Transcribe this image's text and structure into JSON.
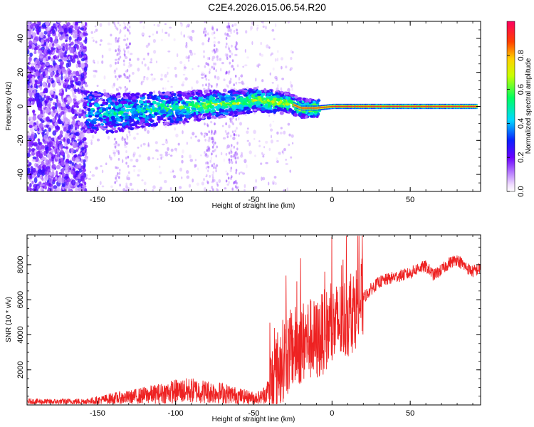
{
  "title": "C2E4.2026.015.06.54.R20",
  "chart_data": [
    {
      "type": "heatmap",
      "title": "C2E4.2026.015.06.54.R20",
      "xlabel": "Height of straight line (km)",
      "ylabel": "Frequency (Hz)",
      "xlim": [
        -195,
        95
      ],
      "ylim": [
        -50,
        50
      ],
      "xticks": [
        -150,
        -100,
        -50,
        0,
        50
      ],
      "xtick_labels": [
        "-150",
        "-100",
        "-50",
        "0",
        "50"
      ],
      "yticks": [
        -40,
        -20,
        0,
        20,
        40
      ],
      "ytick_labels": [
        "-40",
        "-20",
        "0",
        "20",
        "40"
      ],
      "colorbar": {
        "label": "Normalized spectral amplitude",
        "range": [
          0,
          1
        ],
        "ticks": [
          0.0,
          0.2,
          0.4,
          0.6,
          0.8
        ],
        "tick_labels": [
          "0.0",
          "0.2",
          "0.4",
          "0.6",
          "0.8"
        ]
      },
      "peak_frequency_trace": {
        "x": [
          -160,
          -140,
          -120,
          -100,
          -80,
          -60,
          -50,
          -40,
          -30,
          -25,
          -20,
          -10,
          0,
          10,
          20,
          50,
          92
        ],
        "y": [
          -3,
          -4,
          -2,
          -1,
          1,
          2,
          4,
          3,
          2,
          1,
          -1,
          -1,
          0,
          0,
          0,
          0,
          0
        ]
      }
    },
    {
      "type": "line",
      "xlabel": "Height of straight line (km)",
      "ylabel": "SNR (10 * v/v)",
      "xlim": [
        -195,
        95
      ],
      "ylim": [
        0,
        9700
      ],
      "xticks": [
        -150,
        -100,
        -50,
        0,
        50
      ],
      "xtick_labels": [
        "-150",
        "-100",
        "-50",
        "0",
        "50"
      ],
      "yticks": [
        2000,
        4000,
        6000,
        8000
      ],
      "ytick_labels": [
        "2000",
        "4000",
        "6000",
        "8000"
      ],
      "color": "#ee2222",
      "series": [
        {
          "name": "SNR",
          "x": [
            -195,
            -180,
            -160,
            -150,
            -140,
            -130,
            -120,
            -110,
            -100,
            -90,
            -80,
            -70,
            -60,
            -50,
            -45,
            -40,
            -35,
            -30,
            -25,
            -20,
            -15,
            -10,
            -5,
            0,
            5,
            10,
            15,
            20,
            25,
            30,
            40,
            50,
            55,
            60,
            65,
            70,
            75,
            80,
            85,
            90,
            95
          ],
          "y": [
            200,
            180,
            200,
            250,
            380,
            430,
            550,
            650,
            780,
            820,
            750,
            680,
            520,
            400,
            450,
            900,
            1900,
            2800,
            3200,
            3500,
            3800,
            3600,
            4200,
            4400,
            4700,
            5000,
            5600,
            6100,
            6600,
            7000,
            7300,
            7500,
            7800,
            7900,
            7400,
            7700,
            8100,
            8300,
            7900,
            7600,
            7800
          ]
        }
      ]
    }
  ]
}
